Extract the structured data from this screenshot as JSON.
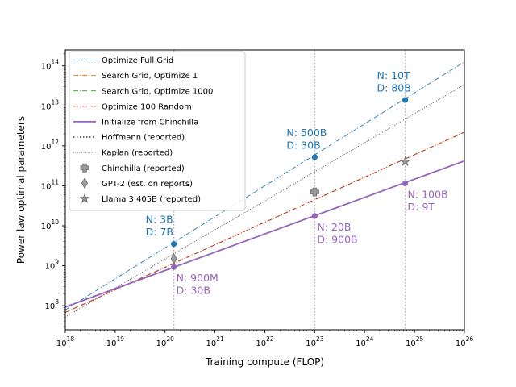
{
  "chart_data": {
    "type": "line",
    "xlabel": "Training compute (FLOP)",
    "ylabel": "Power law optimal parameters",
    "xscale": "log",
    "yscale": "log",
    "xlim": [
      1e+18,
      1e+26
    ],
    "ylim": [
      25000000.0,
      250000000000000.0
    ],
    "x_ticks": [
      {
        "value": 1e+18,
        "base": "10",
        "exp": "18"
      },
      {
        "value": 1e+19,
        "base": "10",
        "exp": "19"
      },
      {
        "value": 1e+20,
        "base": "10",
        "exp": "20"
      },
      {
        "value": 1e+21,
        "base": "10",
        "exp": "21"
      },
      {
        "value": 1e+22,
        "base": "10",
        "exp": "22"
      },
      {
        "value": 1e+23,
        "base": "10",
        "exp": "23"
      },
      {
        "value": 1e+24,
        "base": "10",
        "exp": "24"
      },
      {
        "value": 1e+25,
        "base": "10",
        "exp": "25"
      },
      {
        "value": 1e+26,
        "base": "10",
        "exp": "26"
      }
    ],
    "y_ticks": [
      {
        "value": 100000000.0,
        "base": "10",
        "exp": "8"
      },
      {
        "value": 1000000000.0,
        "base": "10",
        "exp": "9"
      },
      {
        "value": 10000000000.0,
        "base": "10",
        "exp": "10"
      },
      {
        "value": 100000000000.0,
        "base": "10",
        "exp": "11"
      },
      {
        "value": 1000000000000.0,
        "base": "10",
        "exp": "12"
      },
      {
        "value": 10000000000000.0,
        "base": "10",
        "exp": "13"
      },
      {
        "value": 100000000000000.0,
        "base": "10",
        "exp": "14"
      }
    ],
    "vlines": [
      1.5e+20,
      1e+23,
      6.5e+24
    ],
    "series": [
      {
        "name": "Optimize Full Grid",
        "color": "#1f77b4",
        "dash": "dashdot",
        "x": [
          1e+18,
          1e+26
        ],
        "y": [
          79000000.0,
          126000000000000.0
        ]
      },
      {
        "name": "Search Grid, Optimize 1",
        "color": "#ff7f0e",
        "dash": "dashdot",
        "x": [
          1e+18,
          1e+26
        ],
        "y": [
          68000000.0,
          2200000000000.0
        ]
      },
      {
        "name": "Search Grid, Optimize 1000",
        "color": "#2ca02c",
        "dash": "dashdot",
        "x": [
          1e+18,
          1e+26
        ],
        "y": [
          68000000.0,
          2200000000000.0
        ]
      },
      {
        "name": "Optimize 100 Random",
        "color": "#d62728",
        "dash": "dashdot",
        "x": [
          1e+18,
          1e+26
        ],
        "y": [
          68000000.0,
          2200000000000.0
        ]
      },
      {
        "name": "Initialize from Chinchilla",
        "color": "#9467bd",
        "dash": "solid",
        "x": [
          1e+18,
          1e+26
        ],
        "y": [
          93000000.0,
          420000000000.0
        ]
      },
      {
        "name": "Hoffmann (reported)",
        "color": "#444444",
        "dash": "dotted",
        "x": [
          1e+18,
          1e+26
        ],
        "y": [
          93000000.0,
          420000000000.0
        ]
      },
      {
        "name": "Kaplan (reported)",
        "color": "#444444",
        "dash": "dotted-fine",
        "x": [
          1e+18,
          1e+26
        ],
        "y": [
          52000000.0,
          34000000000000.0
        ]
      }
    ],
    "markers": [
      {
        "series": "Optimize Full Grid",
        "color": "#1f77b4",
        "x": [
          1.5e+20,
          1e+23,
          6.5e+24
        ],
        "y": [
          3500000000.0,
          520000000000.0,
          14000000000000.0
        ]
      },
      {
        "series": "Initialize from Chinchilla",
        "color": "#9467bd",
        "x": [
          1.5e+20,
          1e+23,
          6.5e+24
        ],
        "y": [
          930000000.0,
          17500000000.0,
          115000000000.0
        ]
      }
    ],
    "reported_points": [
      {
        "name": "Chinchilla (reported)",
        "shape": "plus",
        "x": 1e+23,
        "y": 70000000000.0
      },
      {
        "name": "GPT-2 (est. on reports)",
        "shape": "diamond",
        "x": 1.5e+20,
        "y": 1500000000.0
      },
      {
        "name": "Llama 3 405B (reported)",
        "shape": "star",
        "x": 6.5e+24,
        "y": 400000000000.0
      }
    ],
    "annotations": [
      {
        "color": "#1f77b4",
        "lines": [
          "N: 3B",
          "D: 7B"
        ],
        "x": 1.5e+20,
        "y": 3500000000.0,
        "align": "above-left"
      },
      {
        "color": "#1f77b4",
        "lines": [
          "N: 500B",
          "D: 30B"
        ],
        "x": 1e+23,
        "y": 520000000000.0,
        "align": "above-left"
      },
      {
        "color": "#1f77b4",
        "lines": [
          "N: 10T",
          "D: 80B"
        ],
        "x": 6.5e+24,
        "y": 14000000000000.0,
        "align": "above-left"
      },
      {
        "color": "#9467bd",
        "lines": [
          "N: 900M",
          "D: 30B"
        ],
        "x": 1.5e+20,
        "y": 930000000.0,
        "align": "below-right"
      },
      {
        "color": "#9467bd",
        "lines": [
          "N: 20B",
          "D: 900B"
        ],
        "x": 1e+23,
        "y": 17500000000.0,
        "align": "below-right"
      },
      {
        "color": "#9467bd",
        "lines": [
          "N: 100B",
          "D: 9T"
        ],
        "x": 6.5e+24,
        "y": 115000000000.0,
        "align": "below-right"
      }
    ],
    "legend": {
      "position": "top-left",
      "entries": [
        {
          "label": "Optimize Full Grid",
          "kind": "line",
          "color": "#1f77b4",
          "dash": "dashdot"
        },
        {
          "label": "Search Grid, Optimize 1",
          "kind": "line",
          "color": "#ff7f0e",
          "dash": "dashdot"
        },
        {
          "label": "Search Grid, Optimize 1000",
          "kind": "line",
          "color": "#2ca02c",
          "dash": "dashdot"
        },
        {
          "label": "Optimize 100 Random",
          "kind": "line",
          "color": "#d62728",
          "dash": "dashdot"
        },
        {
          "label": "Initialize from Chinchilla",
          "kind": "line",
          "color": "#9467bd",
          "dash": "solid"
        },
        {
          "label": "Hoffmann (reported)",
          "kind": "line",
          "color": "#444444",
          "dash": "dotted"
        },
        {
          "label": "Kaplan (reported)",
          "kind": "line",
          "color": "#444444",
          "dash": "dotted-fine"
        },
        {
          "label": "Chinchilla (reported)",
          "kind": "marker",
          "shape": "plus",
          "color": "#888888"
        },
        {
          "label": "GPT-2 (est. on reports)",
          "kind": "marker",
          "shape": "diamond",
          "color": "#888888"
        },
        {
          "label": "Llama 3 405B (reported)",
          "kind": "marker",
          "shape": "star",
          "color": "#888888"
        }
      ]
    }
  }
}
